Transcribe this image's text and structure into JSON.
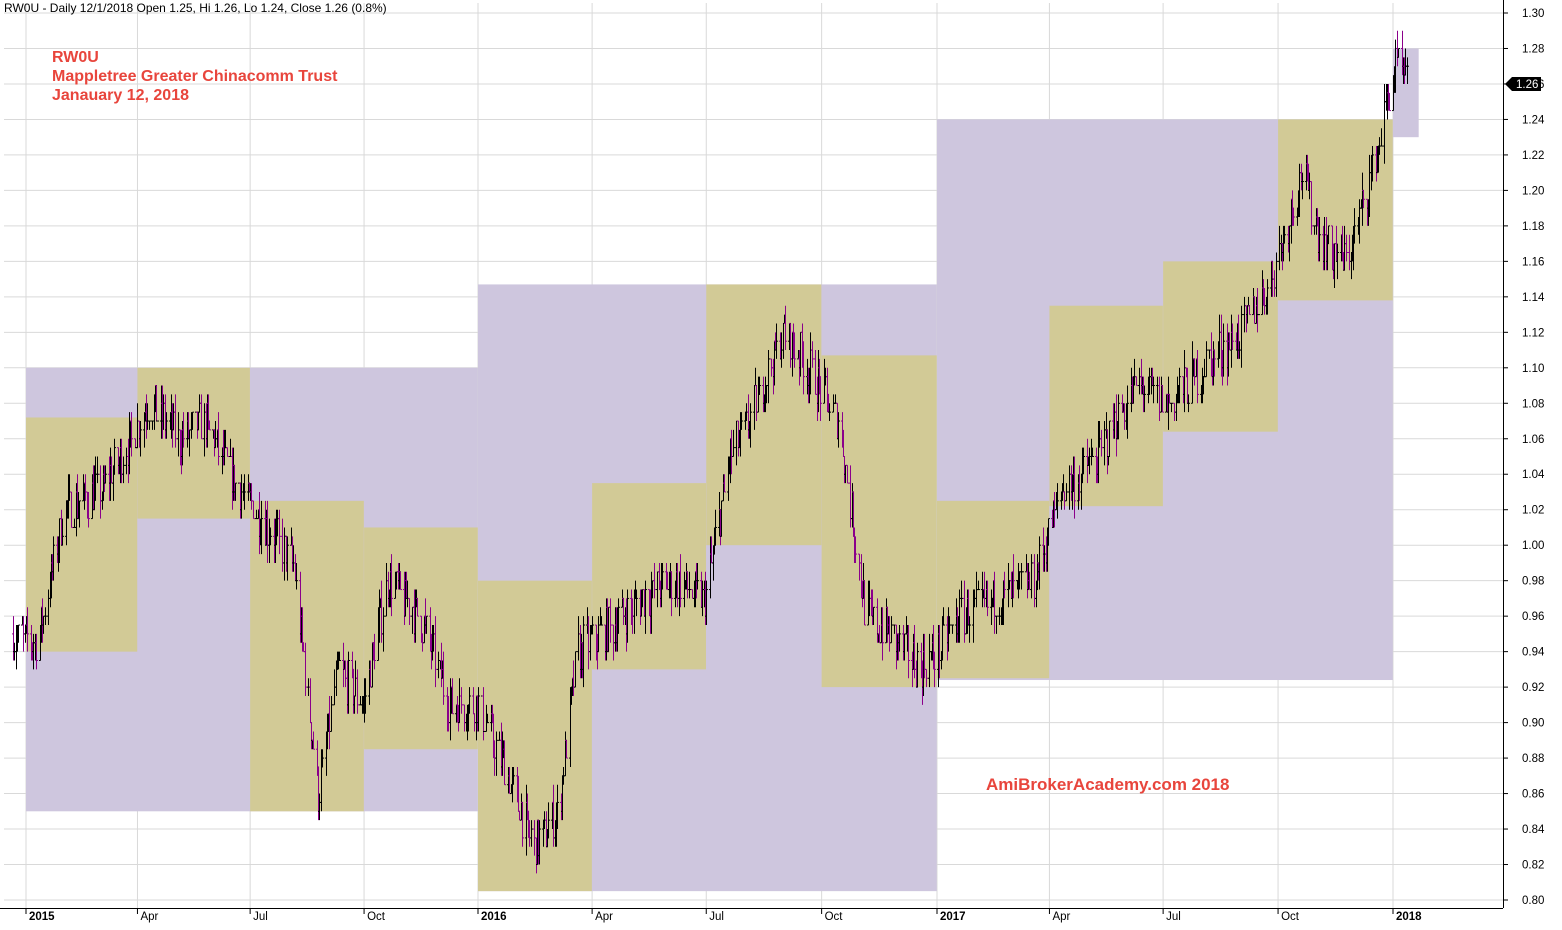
{
  "header": {
    "text": "RW0U - Daily 12/1/2018 Open 1.25, Hi 1.26, Lo 1.24, Close 1.26 (0.8%)"
  },
  "annotation": {
    "line1": "RW0U",
    "line2": "Mappletree Greater Chinacomm Trust",
    "line3": "Janauary 12, 2018",
    "color": "#e8453c"
  },
  "watermark": {
    "text": "AmiBroker Academy.com  2018",
    "display": "AmiBrokerAcademy.com  2018",
    "color": "#e8453c"
  },
  "last_price": {
    "label": "1.26",
    "value": 1.26
  },
  "colors": {
    "yearly_box": "#cec6de",
    "quarterly_box": "#d2ca96",
    "bar_up": "#000000",
    "bar_down": "#8b008b",
    "grid": "#d9d9d9"
  },
  "chart_data": {
    "type": "bar",
    "subtype": "ohlc-daily-with-range-boxes",
    "title": "RW0U",
    "symbol": "RW0U",
    "xlabel": "",
    "ylabel": "",
    "ylim": [
      0.79,
      1.31
    ],
    "xlim": [
      "2014-12-15",
      "2018-03-20"
    ],
    "grid": true,
    "y_ticks": [
      "1.30",
      "1.28",
      "1.26",
      "1.24",
      "1.22",
      "1.20",
      "1.18",
      "1.16",
      "1.14",
      "1.12",
      "1.10",
      "1.08",
      "1.06",
      "1.04",
      "1.02",
      "1.00",
      "0.98",
      "0.96",
      "0.94",
      "0.92",
      "0.90",
      "0.88",
      "0.86",
      "0.84",
      "0.82",
      "0.80"
    ],
    "x_ticks": [
      {
        "label": "2015",
        "date": "2015-01-01",
        "year": true
      },
      {
        "label": "Apr",
        "date": "2015-04-01"
      },
      {
        "label": "Jul",
        "date": "2015-07-01"
      },
      {
        "label": "Oct",
        "date": "2015-10-01"
      },
      {
        "label": "2016",
        "date": "2016-01-01",
        "year": true
      },
      {
        "label": "Apr",
        "date": "2016-04-01"
      },
      {
        "label": "Jul",
        "date": "2016-07-01"
      },
      {
        "label": "Oct",
        "date": "2016-10-01"
      },
      {
        "label": "2017",
        "date": "2017-01-01",
        "year": true
      },
      {
        "label": "Apr",
        "date": "2017-04-01"
      },
      {
        "label": "Jul",
        "date": "2017-07-01"
      },
      {
        "label": "Oct",
        "date": "2017-10-01"
      },
      {
        "label": "2018",
        "date": "2018-01-01",
        "year": true
      }
    ],
    "yearly_ranges": [
      {
        "start": "2015-01-01",
        "end": "2015-12-31",
        "high": 1.1,
        "low": 0.85
      },
      {
        "start": "2016-01-01",
        "end": "2016-12-31",
        "high": 1.147,
        "low": 0.805
      },
      {
        "start": "2017-01-01",
        "end": "2017-12-31",
        "high": 1.24,
        "low": 0.924
      },
      {
        "start": "2018-01-01",
        "end": "2018-01-12",
        "high": 1.28,
        "low": 1.23
      }
    ],
    "quarterly_ranges": [
      {
        "start": "2015-01-01",
        "end": "2015-03-31",
        "high": 1.072,
        "low": 0.94
      },
      {
        "start": "2015-04-01",
        "end": "2015-06-30",
        "high": 1.1,
        "low": 1.015
      },
      {
        "start": "2015-07-01",
        "end": "2015-09-30",
        "high": 1.025,
        "low": 0.85
      },
      {
        "start": "2015-10-01",
        "end": "2015-12-31",
        "high": 1.01,
        "low": 0.885
      },
      {
        "start": "2016-01-01",
        "end": "2016-03-31",
        "high": 0.98,
        "low": 0.805
      },
      {
        "start": "2016-04-01",
        "end": "2016-06-30",
        "high": 1.035,
        "low": 0.93
      },
      {
        "start": "2016-07-01",
        "end": "2016-09-30",
        "high": 1.147,
        "low": 1.0
      },
      {
        "start": "2016-10-01",
        "end": "2016-12-31",
        "high": 1.107,
        "low": 0.92
      },
      {
        "start": "2017-01-01",
        "end": "2017-03-31",
        "high": 1.025,
        "low": 0.925
      },
      {
        "start": "2017-04-01",
        "end": "2017-06-30",
        "high": 1.135,
        "low": 1.022
      },
      {
        "start": "2017-07-01",
        "end": "2017-09-30",
        "high": 1.16,
        "low": 1.064
      },
      {
        "start": "2017-10-01",
        "end": "2017-12-31",
        "high": 1.24,
        "low": 1.138
      }
    ],
    "price_path": [
      {
        "date": "2014-12-20",
        "close": 0.95
      },
      {
        "date": "2015-01-10",
        "close": 0.945
      },
      {
        "date": "2015-02-01",
        "close": 1.02
      },
      {
        "date": "2015-03-01",
        "close": 1.03
      },
      {
        "date": "2015-03-20",
        "close": 1.05
      },
      {
        "date": "2015-04-10",
        "close": 1.08
      },
      {
        "date": "2015-05-05",
        "close": 1.06
      },
      {
        "date": "2015-05-25",
        "close": 1.07
      },
      {
        "date": "2015-06-15",
        "close": 1.04
      },
      {
        "date": "2015-07-05",
        "close": 1.02
      },
      {
        "date": "2015-08-05",
        "close": 0.99
      },
      {
        "date": "2015-08-25",
        "close": 0.86
      },
      {
        "date": "2015-09-10",
        "close": 0.93
      },
      {
        "date": "2015-09-30",
        "close": 0.91
      },
      {
        "date": "2015-10-20",
        "close": 0.98
      },
      {
        "date": "2015-11-15",
        "close": 0.96
      },
      {
        "date": "2015-12-10",
        "close": 0.91
      },
      {
        "date": "2016-01-01",
        "close": 0.91
      },
      {
        "date": "2016-01-25",
        "close": 0.87
      },
      {
        "date": "2016-02-15",
        "close": 0.83
      },
      {
        "date": "2016-03-05",
        "close": 0.85
      },
      {
        "date": "2016-03-20",
        "close": 0.94
      },
      {
        "date": "2016-04-10",
        "close": 0.95
      },
      {
        "date": "2016-05-10",
        "close": 0.97
      },
      {
        "date": "2016-06-05",
        "close": 0.98
      },
      {
        "date": "2016-06-30",
        "close": 0.97
      },
      {
        "date": "2016-07-20",
        "close": 1.05
      },
      {
        "date": "2016-08-10",
        "close": 1.08
      },
      {
        "date": "2016-09-01",
        "close": 1.12
      },
      {
        "date": "2016-09-20",
        "close": 1.1
      },
      {
        "date": "2016-10-15",
        "close": 1.07
      },
      {
        "date": "2016-11-05",
        "close": 0.96
      },
      {
        "date": "2016-11-25",
        "close": 0.95
      },
      {
        "date": "2016-12-20",
        "close": 0.93
      },
      {
        "date": "2017-01-20",
        "close": 0.96
      },
      {
        "date": "2017-02-20",
        "close": 0.97
      },
      {
        "date": "2017-03-20",
        "close": 0.98
      },
      {
        "date": "2017-04-10",
        "close": 1.03
      },
      {
        "date": "2017-05-10",
        "close": 1.05
      },
      {
        "date": "2017-06-10",
        "close": 1.09
      },
      {
        "date": "2017-07-05",
        "close": 1.08
      },
      {
        "date": "2017-08-01",
        "close": 1.1
      },
      {
        "date": "2017-09-01",
        "close": 1.12
      },
      {
        "date": "2017-09-25",
        "close": 1.15
      },
      {
        "date": "2017-10-20",
        "close": 1.21
      },
      {
        "date": "2017-11-05",
        "close": 1.17
      },
      {
        "date": "2017-11-25",
        "close": 1.16
      },
      {
        "date": "2017-12-15",
        "close": 1.21
      },
      {
        "date": "2018-01-03",
        "close": 1.27
      },
      {
        "date": "2018-01-12",
        "close": 1.26
      }
    ]
  }
}
